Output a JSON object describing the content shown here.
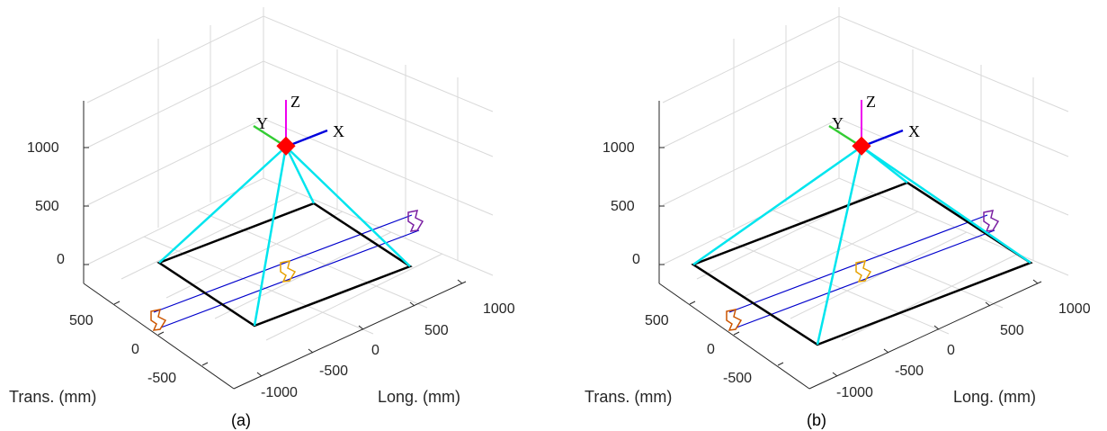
{
  "panels": [
    {
      "caption": "(a)",
      "z_ticks": [
        "1000",
        "500",
        "0"
      ],
      "trans_ticks": [
        "500",
        "0",
        "-500"
      ],
      "long_ticks": [
        "-1000",
        "-500",
        "0",
        "500",
        "1000"
      ],
      "trans_label": "Trans. (mm)",
      "long_label": "Long. (mm)",
      "frame_labels": {
        "x": "X",
        "y": "Y",
        "z": "Z"
      }
    },
    {
      "caption": "(b)",
      "z_ticks": [
        "1000",
        "500",
        "0"
      ],
      "trans_ticks": [
        "500",
        "0",
        "-500"
      ],
      "long_ticks": [
        "-1000",
        "-500",
        "0",
        "500",
        "1000"
      ],
      "trans_label": "Trans. (mm)",
      "long_label": "Long. (mm)",
      "frame_labels": {
        "x": "X",
        "y": "Y",
        "z": "Z"
      }
    }
  ],
  "colors": {
    "cables": "#00e5ee",
    "platform_base": "#000000",
    "end_effector": "#ff0000",
    "rail": "#0000cc",
    "axis_x": "#0000dd",
    "axis_y": "#33cc33",
    "axis_z": "#ee00ee",
    "profile_left": "#cc5500",
    "profile_mid": "#e6a100",
    "profile_right": "#7a1fa2"
  }
}
